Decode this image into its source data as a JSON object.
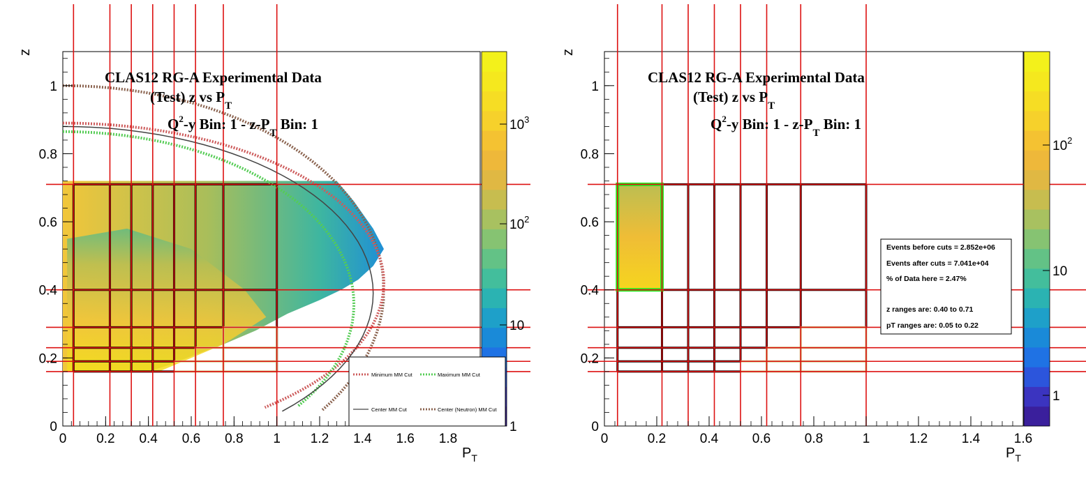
{
  "chart_data": [
    {
      "type": "heatmap",
      "title_lines": [
        "CLAS12 RG-A Experimental Data",
        "(Test) z vs P",
        "Q",
        "-y Bin: 1 - z-P",
        " Bin: 1"
      ],
      "title": {
        "line1": "CLAS12 RG-A Experimental Data",
        "line2_main": "(Test) z vs P",
        "line2_sub": "T",
        "line3_q": "Q",
        "line3_sup": "2",
        "line3_mid": "-y Bin: 1 - z-P",
        "line3_sub": "T",
        "line3_end": " Bin: 1"
      },
      "xlabel": "P",
      "xlabel_sub": "T",
      "ylabel": "z",
      "xlim": [
        0,
        1.95
      ],
      "ylim": [
        0,
        1.1
      ],
      "xticks": [
        "0",
        "0.2",
        "0.4",
        "0.6",
        "0.8",
        "1",
        "1.2",
        "1.4",
        "1.6",
        "1.8"
      ],
      "yticks": [
        "0",
        "0.2",
        "0.4",
        "0.6",
        "0.8",
        "1"
      ],
      "colorbar": {
        "scale": "log",
        "labels": [
          "1",
          "10",
          "10",
          "10"
        ],
        "label_exponents": [
          "",
          "",
          "2",
          "3"
        ]
      },
      "pt_bin_edges": [
        0.05,
        0.22,
        0.32,
        0.42,
        0.52,
        0.62,
        0.75,
        1.0
      ],
      "z_bin_edges": [
        0.16,
        0.19,
        0.23,
        0.29,
        0.4,
        0.71
      ],
      "legend": [
        "Minimum MM Cut",
        "Maximum MM Cut",
        "Center MM Cut",
        "Center (Neutron) MM Cut"
      ],
      "series_colors": {
        "minimum": "#cd5c5c",
        "maximum": "#55cc55",
        "center": "#444444",
        "neutron": "#8b6450"
      }
    },
    {
      "type": "heatmap",
      "title": {
        "line1": "CLAS12 RG-A Experimental Data",
        "line2_main": "(Test) z vs P",
        "line2_sub": "T",
        "line3_q": "Q",
        "line3_sup": "2",
        "line3_mid": "-y Bin: 1 - z-P",
        "line3_sub": "T",
        "line3_end": " Bin: 1"
      },
      "xlabel": "P",
      "xlabel_sub": "T",
      "ylabel": "z",
      "xlim": [
        0,
        1.6
      ],
      "ylim": [
        0,
        1.1
      ],
      "xticks": [
        "0",
        "0.2",
        "0.4",
        "0.6",
        "0.8",
        "1",
        "1.2",
        "1.4",
        "1.6"
      ],
      "yticks": [
        "0",
        "0.2",
        "0.4",
        "0.6",
        "0.8",
        "1"
      ],
      "colorbar": {
        "scale": "log",
        "labels": [
          "1",
          "10",
          "10"
        ],
        "label_exponents": [
          "",
          "",
          "2"
        ]
      },
      "highlight_bin": {
        "pt": [
          0.05,
          0.22
        ],
        "z": [
          0.4,
          0.71
        ]
      },
      "stats": {
        "before": "Events before cuts = 2.852e+06",
        "after": "Events after cuts  = 7.041e+04",
        "percent": "% of Data here = 2.47%",
        "z_range": "z   ranges are: 0.40 to 0.71",
        "pt_range": "pT ranges are: 0.05 to 0.22"
      }
    }
  ]
}
